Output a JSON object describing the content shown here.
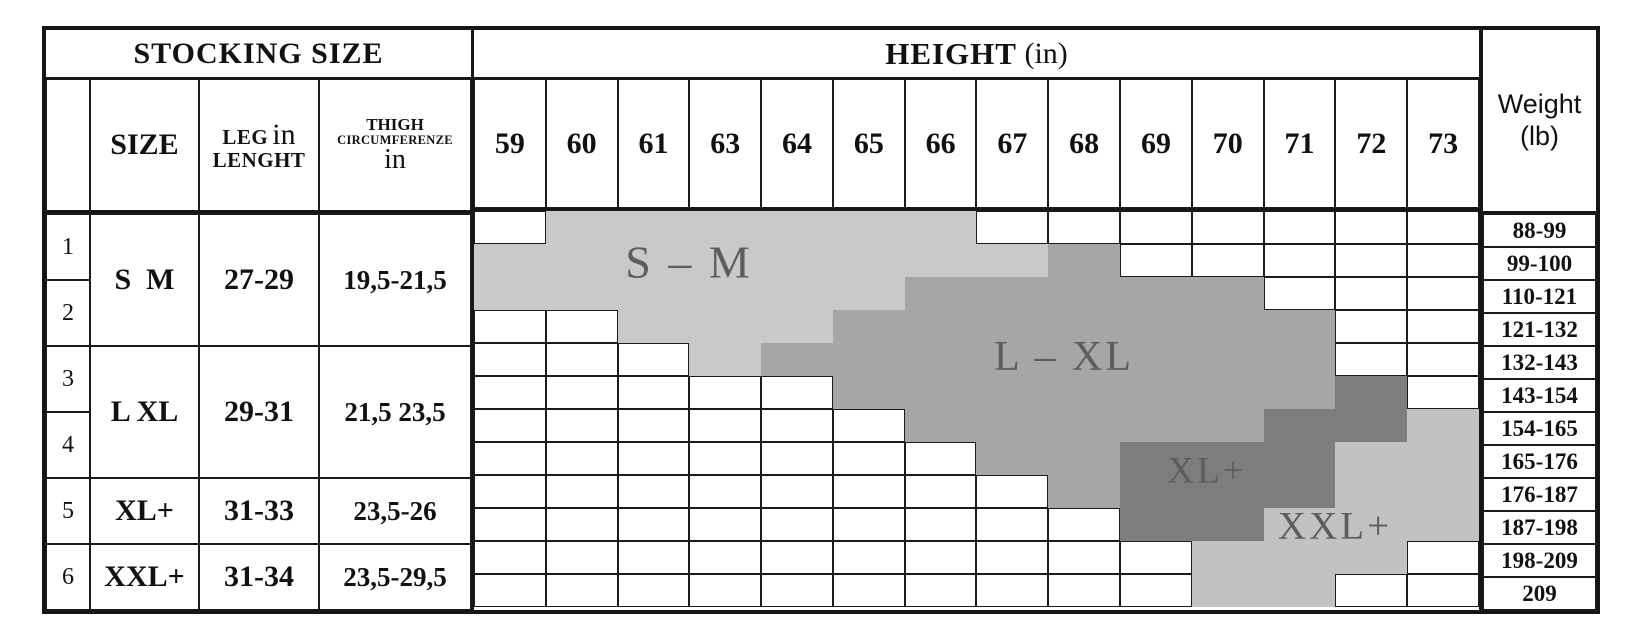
{
  "left_table": {
    "title": "STOCKING SIZE",
    "headers": {
      "size": "SIZE",
      "leg_word": "LEG",
      "leg_in": "in",
      "leg_line2": "LENGHT",
      "thigh_line1": "THIGH",
      "thigh_line2": "CIRCUMFERENZE",
      "thigh_line3": "in"
    },
    "rows": [
      {
        "nums": [
          "1",
          "2"
        ],
        "size": "S  M",
        "leg": "27-29",
        "thigh": "19,5-21,5"
      },
      {
        "nums": [
          "3",
          "4"
        ],
        "size": "L XL",
        "leg": "29-31",
        "thigh": "21,5 23,5"
      },
      {
        "nums": [
          "5"
        ],
        "size": "XL+",
        "leg": "31-33",
        "thigh": "23,5-26"
      },
      {
        "nums": [
          "6"
        ],
        "size": "XXL+",
        "leg": "31-34",
        "thigh": "23,5-29,5"
      }
    ]
  },
  "height_header": {
    "label_bold": "HEIGHT",
    "label_paren": "(in)",
    "cols": [
      "59",
      "60",
      "61",
      "63",
      "64",
      "65",
      "66",
      "67",
      "68",
      "69",
      "70",
      "71",
      "72",
      "73"
    ]
  },
  "weight_column": {
    "line1": "Weight",
    "line2": "(lb)",
    "values": [
      "88-99",
      "99-100",
      "110-121",
      "121-132",
      "132-143",
      "143-154",
      "154-165",
      "165-176",
      "176-187",
      "187-198",
      "198-209",
      "209"
    ]
  },
  "region_labels": [
    {
      "text": "S – M"
    },
    {
      "text": "L – XL"
    },
    {
      "text": "XL+"
    },
    {
      "text": "XXL+"
    }
  ],
  "colors": {
    "S-M": "#c9c9c9",
    "L-XL": "#a6a6a6",
    "XL+": "#7d7d7d",
    "XXL+": "#c2c2c2",
    "border": "#161616",
    "label_text": "#5d5d5d"
  },
  "chart_data": {
    "type": "heatmap",
    "x_axis_label": "HEIGHT (in)",
    "y_axis_label": "Weight (lb)",
    "x_categories": [
      "59",
      "60",
      "61",
      "63",
      "64",
      "65",
      "66",
      "67",
      "68",
      "69",
      "70",
      "71",
      "72",
      "73"
    ],
    "y_categories": [
      "88-99",
      "99-100",
      "110-121",
      "121-132",
      "132-143",
      "143-154",
      "154-165",
      "165-176",
      "176-187",
      "187-198",
      "198-209",
      "209"
    ],
    "zones": [
      "S-M",
      "L-XL",
      "XL+",
      "XXL+"
    ],
    "matrix": [
      [
        "",
        "S-M",
        "S-M",
        "S-M",
        "S-M",
        "S-M",
        "S-M",
        "",
        "",
        "",
        "",
        "",
        "",
        ""
      ],
      [
        "S-M",
        "S-M",
        "S-M",
        "S-M",
        "S-M",
        "S-M",
        "S-M",
        "S-M",
        "L-XL",
        "",
        "",
        "",
        "",
        ""
      ],
      [
        "S-M",
        "S-M",
        "S-M",
        "S-M",
        "S-M",
        "S-M",
        "L-XL",
        "L-XL",
        "L-XL",
        "L-XL",
        "L-XL",
        "",
        "",
        ""
      ],
      [
        "",
        "",
        "S-M",
        "S-M",
        "S-M",
        "L-XL",
        "L-XL",
        "L-XL",
        "L-XL",
        "L-XL",
        "L-XL",
        "L-XL",
        "",
        ""
      ],
      [
        "",
        "",
        "",
        "S-M",
        "L-XL",
        "L-XL",
        "L-XL",
        "L-XL",
        "L-XL",
        "L-XL",
        "L-XL",
        "L-XL",
        "",
        ""
      ],
      [
        "",
        "",
        "",
        "",
        "",
        "L-XL",
        "L-XL",
        "L-XL",
        "L-XL",
        "L-XL",
        "L-XL",
        "L-XL",
        "XL+",
        ""
      ],
      [
        "",
        "",
        "",
        "",
        "",
        "",
        "L-XL",
        "L-XL",
        "L-XL",
        "L-XL",
        "L-XL",
        "XL+",
        "XL+",
        "XXL+"
      ],
      [
        "",
        "",
        "",
        "",
        "",
        "",
        "",
        "L-XL",
        "L-XL",
        "XL+",
        "XL+",
        "XL+",
        "XXL+",
        "XXL+"
      ],
      [
        "",
        "",
        "",
        "",
        "",
        "",
        "",
        "",
        "L-XL",
        "XL+",
        "XL+",
        "XL+",
        "XXL+",
        "XXL+"
      ],
      [
        "",
        "",
        "",
        "",
        "",
        "",
        "",
        "",
        "",
        "XL+",
        "XL+",
        "XXL+",
        "XXL+",
        "XXL+"
      ],
      [
        "",
        "",
        "",
        "",
        "",
        "",
        "",
        "",
        "",
        "",
        "XXL+",
        "XXL+",
        "XXL+",
        ""
      ],
      [
        "",
        "",
        "",
        "",
        "",
        "",
        "",
        "",
        "",
        "",
        "XXL+",
        "XXL+",
        "",
        ""
      ]
    ],
    "size_table": [
      {
        "row_numbers": [
          "1",
          "2"
        ],
        "size": "S  M",
        "leg_length_in": "27-29",
        "thigh_circumference_in": "19,5-21,5"
      },
      {
        "row_numbers": [
          "3",
          "4"
        ],
        "size": "L XL",
        "leg_length_in": "29-31",
        "thigh_circumference_in": "21,5 23,5"
      },
      {
        "row_numbers": [
          "5"
        ],
        "size": "XL+",
        "leg_length_in": "31-33",
        "thigh_circumference_in": "23,5-26"
      },
      {
        "row_numbers": [
          "6"
        ],
        "size": "XXL+",
        "leg_length_in": "31-34",
        "thigh_circumference_in": "23,5-29,5"
      }
    ]
  }
}
